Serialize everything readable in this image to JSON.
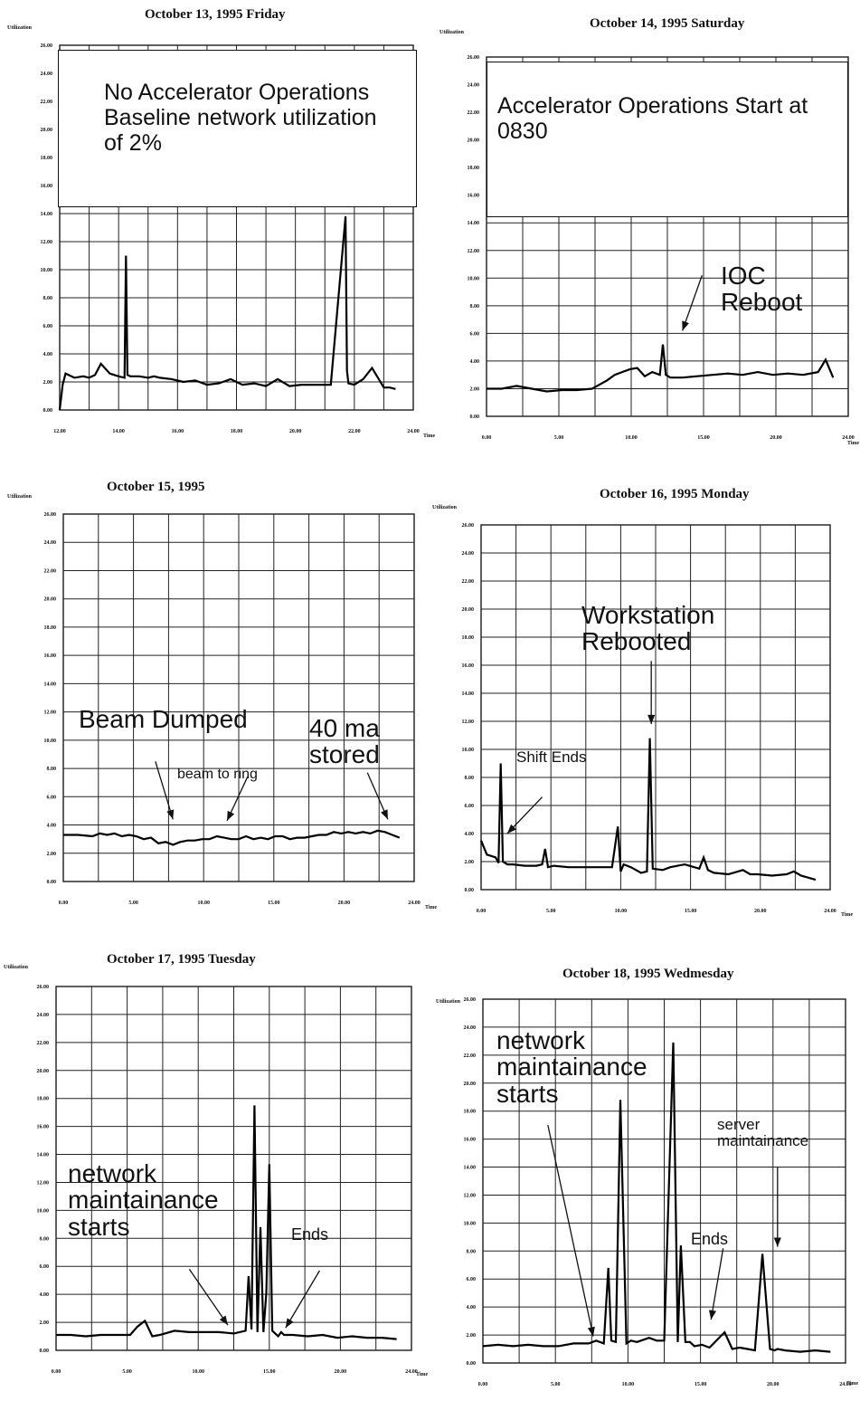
{
  "chart_data": [
    {
      "type": "line",
      "title": "October 13, 1995 Friday",
      "ylabel": "Utilization",
      "xlabel": "Time",
      "yticks": [
        "0.00",
        "2.00",
        "4.00",
        "6.00",
        "8.00",
        "10.00",
        "12.00",
        "14.00",
        "16.00",
        "18.00",
        "20.00",
        "22.00",
        "24.00",
        "26.00"
      ],
      "xticks": [
        "12.00",
        "14.00",
        "16.00",
        "18.00",
        "20.00",
        "22.00",
        "24.00"
      ],
      "xlim": [
        12,
        24
      ],
      "ylim": [
        0,
        26
      ],
      "grid": true,
      "series": [
        {
          "x": [
            12.0,
            12.1,
            12.2,
            12.5,
            12.8,
            13.0,
            13.2,
            13.4,
            13.7,
            14.0,
            14.2,
            14.25,
            14.3,
            14.4,
            14.7,
            15.0,
            15.2,
            15.4,
            15.8,
            16.2,
            16.6,
            17.0,
            17.4,
            17.8,
            18.2,
            18.6,
            19.0,
            19.4,
            19.8,
            20.2,
            20.6,
            21.0,
            21.2,
            21.7,
            21.75,
            21.8,
            22.0,
            22.3,
            22.6,
            23.0,
            23.2,
            23.4
          ],
          "y": [
            0,
            1.8,
            2.6,
            2.3,
            2.4,
            2.3,
            2.5,
            3.3,
            2.6,
            2.4,
            2.3,
            11.0,
            2.5,
            2.4,
            2.4,
            2.3,
            2.4,
            2.3,
            2.2,
            2.0,
            2.1,
            1.8,
            1.9,
            2.2,
            1.8,
            1.9,
            1.7,
            2.2,
            1.7,
            1.8,
            1.8,
            1.8,
            1.8,
            13.8,
            2.8,
            1.9,
            1.8,
            2.2,
            3.0,
            1.6,
            1.6,
            1.5
          ]
        }
      ],
      "annotations": [
        {
          "text": "No Accelerator Operations\nBaseline network utilization\nof 2%"
        }
      ]
    },
    {
      "type": "line",
      "title": "October 14, 1995 Saturday",
      "ylabel": "Utilization",
      "xlabel": "Time",
      "yticks": [
        "0.00",
        "2.00",
        "4.00",
        "6.00",
        "8.00",
        "10.00",
        "12.00",
        "14.00",
        "16.00",
        "18.00",
        "20.00",
        "22.00",
        "24.00",
        "26.00"
      ],
      "xticks": [
        "0.00",
        "5.00",
        "10.00",
        "15.00",
        "20.00",
        "24.00"
      ],
      "xlim": [
        0,
        24
      ],
      "ylim": [
        0,
        26
      ],
      "grid": true,
      "series": [
        {
          "x": [
            0,
            1,
            2,
            3,
            4,
            5,
            6,
            7,
            7.5,
            8,
            8.5,
            9,
            9.5,
            10,
            10.5,
            11,
            11.5,
            11.7,
            11.9,
            12.2,
            13,
            14,
            15,
            16,
            17,
            18,
            19,
            20,
            21,
            22,
            22.5,
            23
          ],
          "y": [
            2.0,
            2.0,
            2.2,
            2.0,
            1.8,
            1.9,
            1.9,
            2.0,
            2.3,
            2.6,
            3.0,
            3.2,
            3.4,
            3.5,
            2.9,
            3.2,
            3.0,
            5.2,
            3.0,
            2.8,
            2.8,
            2.9,
            3.0,
            3.1,
            3.0,
            3.2,
            3.0,
            3.1,
            3.0,
            3.2,
            4.1,
            2.8
          ]
        }
      ],
      "annotations": [
        {
          "text": "Accelerator Operations Start at\n0830"
        },
        {
          "text": "IOC\nReboot"
        }
      ]
    },
    {
      "type": "line",
      "title": "October 15, 1995",
      "ylabel": "Utilization",
      "xlabel": "Time",
      "yticks": [
        "0.00",
        "2.00",
        "4.00",
        "6.00",
        "8.00",
        "10.00",
        "12.00",
        "14.00",
        "16.00",
        "18.00",
        "20.00",
        "22.00",
        "24.00",
        "26.00"
      ],
      "xticks": [
        "0.00",
        "5.00",
        "10.00",
        "15.00",
        "20.00",
        "24.00"
      ],
      "xlim": [
        0,
        24
      ],
      "ylim": [
        0,
        26
      ],
      "grid": true,
      "series": [
        {
          "x": [
            0,
            1,
            2,
            2.5,
            3,
            3.5,
            4,
            4.5,
            5,
            5.5,
            6,
            6.5,
            7,
            7.5,
            8,
            8.5,
            9,
            9.5,
            10,
            10.5,
            11,
            11.5,
            12,
            12.5,
            13,
            13.5,
            14,
            14.5,
            15,
            15.5,
            16,
            16.5,
            17,
            17.5,
            18,
            18.5,
            19,
            19.5,
            20,
            20.5,
            21,
            21.5,
            22,
            22.5,
            23
          ],
          "y": [
            3.3,
            3.3,
            3.2,
            3.4,
            3.3,
            3.4,
            3.2,
            3.3,
            3.2,
            3.0,
            3.1,
            2.7,
            2.8,
            2.6,
            2.8,
            2.9,
            2.9,
            3.0,
            3.0,
            3.2,
            3.1,
            3.0,
            3.0,
            3.2,
            3.0,
            3.1,
            3.0,
            3.2,
            3.2,
            3.0,
            3.1,
            3.1,
            3.2,
            3.3,
            3.3,
            3.5,
            3.4,
            3.5,
            3.4,
            3.5,
            3.4,
            3.6,
            3.5,
            3.3,
            3.1
          ]
        }
      ],
      "annotations": [
        {
          "text": "Beam Dumped"
        },
        {
          "text": "beam to ring"
        },
        {
          "text": "40 ma\nstored"
        }
      ]
    },
    {
      "type": "line",
      "title": "October 16, 1995 Monday",
      "ylabel": "Utilization",
      "xlabel": "Time",
      "yticks": [
        "0.00",
        "2.00",
        "4.00",
        "6.00",
        "8.00",
        "10.00",
        "12.00",
        "14.00",
        "16.00",
        "18.00",
        "20.00",
        "22.00",
        "24.00",
        "26.00"
      ],
      "xticks": [
        "0.00",
        "5.00",
        "10.00",
        "15.00",
        "20.00",
        "24.00"
      ],
      "xlim": [
        0,
        24
      ],
      "ylim": [
        0,
        26
      ],
      "grid": true,
      "series": [
        {
          "x": [
            0,
            0.4,
            0.7,
            1.0,
            1.2,
            1.35,
            1.5,
            1.8,
            2.2,
            3.0,
            3.8,
            4.2,
            4.4,
            4.6,
            5,
            6,
            7,
            8,
            9,
            9.4,
            9.6,
            9.8,
            10.3,
            11,
            11.4,
            11.6,
            11.8,
            12.5,
            13,
            14,
            15,
            15.3,
            15.6,
            16,
            17,
            18,
            18.5,
            19,
            20,
            21,
            21.5,
            22,
            23
          ],
          "y": [
            3.5,
            2.5,
            2.4,
            2.3,
            1.9,
            9.0,
            2.0,
            1.8,
            1.8,
            1.7,
            1.7,
            1.8,
            2.9,
            1.6,
            1.7,
            1.6,
            1.6,
            1.6,
            1.6,
            4.5,
            1.3,
            1.8,
            1.6,
            1.2,
            1.3,
            10.8,
            1.5,
            1.4,
            1.6,
            1.8,
            1.5,
            2.3,
            1.4,
            1.2,
            1.1,
            1.4,
            1.1,
            1.1,
            1.0,
            1.1,
            1.3,
            1.0,
            0.7
          ]
        }
      ],
      "annotations": [
        {
          "text": "Workstation\nRebooted"
        },
        {
          "text": "Shift Ends"
        }
      ]
    },
    {
      "type": "line",
      "title": "October 17, 1995 Tuesday",
      "ylabel": "Utilization",
      "xlabel": "Time",
      "yticks": [
        "0.00",
        "2.00",
        "4.00",
        "6.00",
        "8.00",
        "10.00",
        "12.00",
        "14.00",
        "16.00",
        "18.00",
        "20.00",
        "22.00",
        "24.00",
        "26.00"
      ],
      "xticks": [
        "0.00",
        "5.00",
        "10.00",
        "15.00",
        "20.00",
        "24.00"
      ],
      "xlim": [
        0,
        24
      ],
      "ylim": [
        0,
        26
      ],
      "grid": true,
      "series": [
        {
          "x": [
            0,
            1,
            2,
            3,
            4,
            5,
            5.5,
            6,
            6.5,
            7,
            8,
            9,
            10,
            11,
            12,
            12.8,
            13.0,
            13.2,
            13.4,
            13.6,
            13.8,
            14.0,
            14.2,
            14.4,
            14.6,
            14.8,
            15.0,
            15.2,
            15.4,
            16,
            17,
            18,
            19,
            20,
            21,
            22,
            23
          ],
          "y": [
            1.1,
            1.1,
            1.0,
            1.1,
            1.1,
            1.1,
            1.7,
            2.1,
            1.0,
            1.1,
            1.4,
            1.3,
            1.3,
            1.3,
            1.2,
            1.4,
            5.3,
            1.5,
            17.5,
            1.3,
            8.8,
            1.3,
            4.1,
            13.3,
            1.4,
            1.2,
            1.0,
            1.3,
            1.1,
            1.1,
            1.0,
            1.1,
            0.9,
            1.0,
            0.9,
            0.9,
            0.8
          ]
        }
      ],
      "annotations": [
        {
          "text": "network\nmaintainance\nstarts"
        },
        {
          "text": "Ends"
        }
      ]
    },
    {
      "type": "line",
      "title": "October 18, 1995 Wedmesday",
      "ylabel": "Utilization",
      "xlabel": "Time",
      "yticks": [
        "0.00",
        "2.00",
        "4.00",
        "6.00",
        "8.00",
        "10.00",
        "12.00",
        "14.00",
        "16.00",
        "18.00",
        "20.00",
        "22.00",
        "24.00",
        "26.00"
      ],
      "xticks": [
        "0.00",
        "5.00",
        "10.00",
        "15.00",
        "20.00",
        "24.00"
      ],
      "xlim": [
        0,
        24
      ],
      "ylim": [
        0,
        26
      ],
      "grid": true,
      "series": [
        {
          "x": [
            0,
            1,
            2,
            3,
            4,
            5,
            6,
            7,
            7.5,
            8,
            8.3,
            8.5,
            8.8,
            9.1,
            9.5,
            9.8,
            10.2,
            11,
            11.5,
            12,
            12.6,
            12.9,
            13.1,
            13.4,
            13.7,
            14,
            14.5,
            15,
            16,
            16.5,
            17,
            17.5,
            18,
            18.5,
            19,
            19.3,
            19.5,
            20,
            21,
            22,
            23
          ],
          "y": [
            1.2,
            1.3,
            1.2,
            1.3,
            1.2,
            1.2,
            1.4,
            1.4,
            1.6,
            1.4,
            6.8,
            1.6,
            1.5,
            18.8,
            1.4,
            1.6,
            1.5,
            1.8,
            1.6,
            1.6,
            22.9,
            1.5,
            8.4,
            1.5,
            1.5,
            1.2,
            1.3,
            1.1,
            2.2,
            1.0,
            1.1,
            1.0,
            0.9,
            7.8,
            1.0,
            0.9,
            1.0,
            0.9,
            0.8,
            0.9,
            0.8
          ]
        }
      ],
      "annotations": [
        {
          "text": "network\nmaintainance\nstarts"
        },
        {
          "text": "server\nmaintainance"
        },
        {
          "text": "Ends"
        }
      ]
    }
  ]
}
